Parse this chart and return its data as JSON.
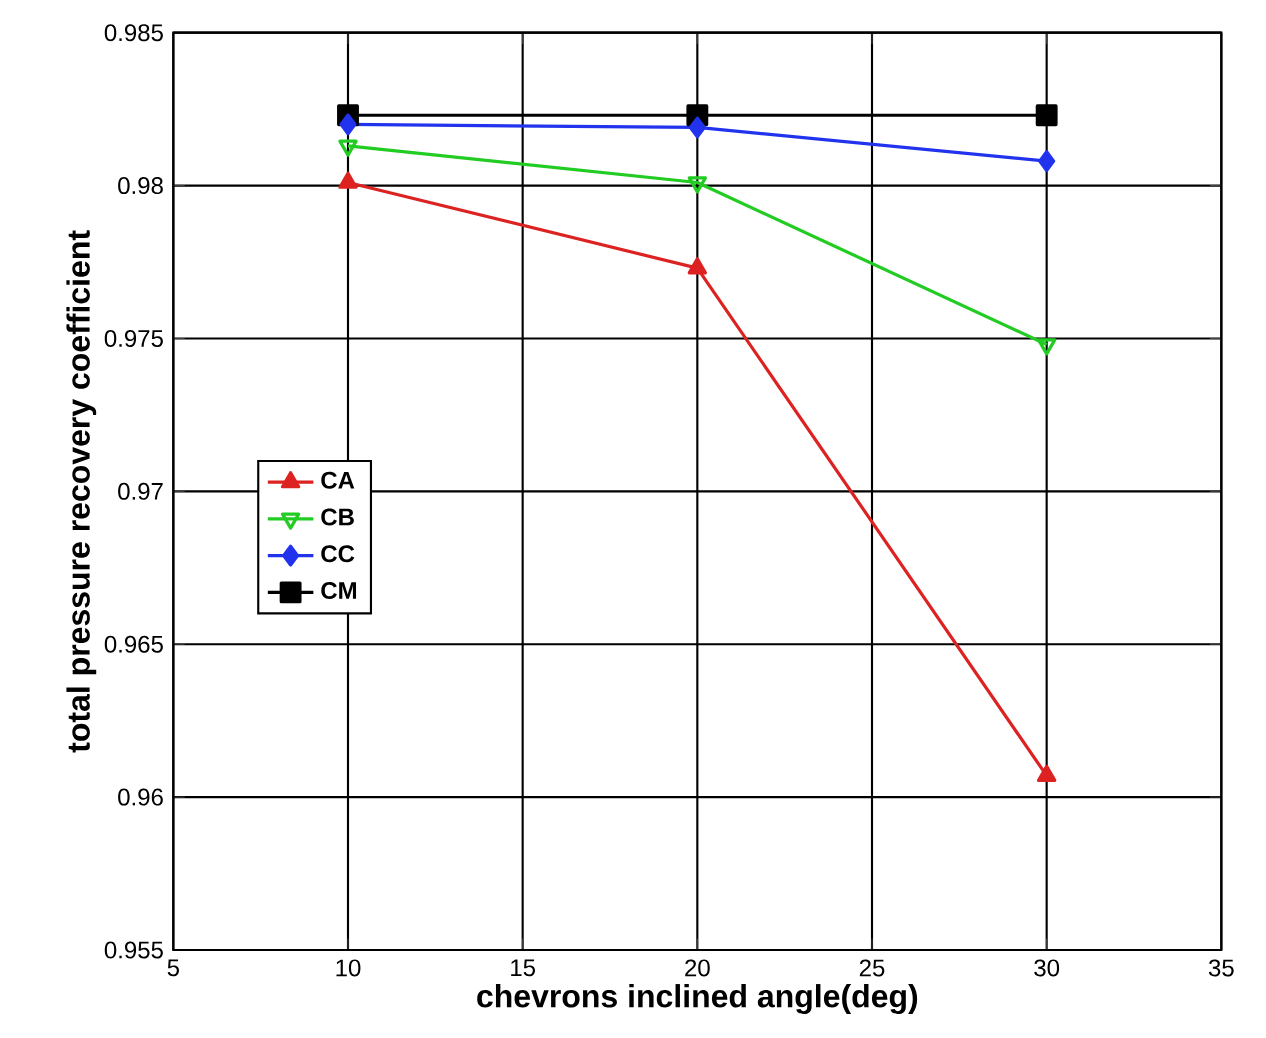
{
  "chart_data": {
    "type": "line",
    "xlabel": "chevrons inclined angle(deg)",
    "ylabel": "total pressure recovery coefficient",
    "x": [
      10,
      20,
      30
    ],
    "series": [
      {
        "name": "CA",
        "color": "#dd2222",
        "values": [
          0.9801,
          0.9773,
          0.9607
        ],
        "marker": "triangle"
      },
      {
        "name": "CB",
        "color": "#22cc22",
        "values": [
          0.9813,
          0.9801,
          0.9748
        ],
        "marker": "triangle down"
      },
      {
        "name": "CC",
        "color": "#2233ee",
        "values": [
          0.982,
          0.9819,
          0.9808
        ],
        "marker": "diamond"
      },
      {
        "name": "CM",
        "color": "#000000",
        "values": [
          0.9823,
          0.9823,
          0.9823
        ],
        "marker": "square"
      }
    ],
    "xlim": [
      5,
      35
    ],
    "ylim": [
      0.955,
      0.985
    ],
    "xticks": [
      5,
      10,
      15,
      20,
      25,
      30,
      35
    ],
    "yticks": [
      0.955,
      0.96,
      0.965,
      0.97,
      0.975,
      0.98,
      0.985
    ],
    "grid": true,
    "legend": "left",
    "line_style": "solid"
  }
}
